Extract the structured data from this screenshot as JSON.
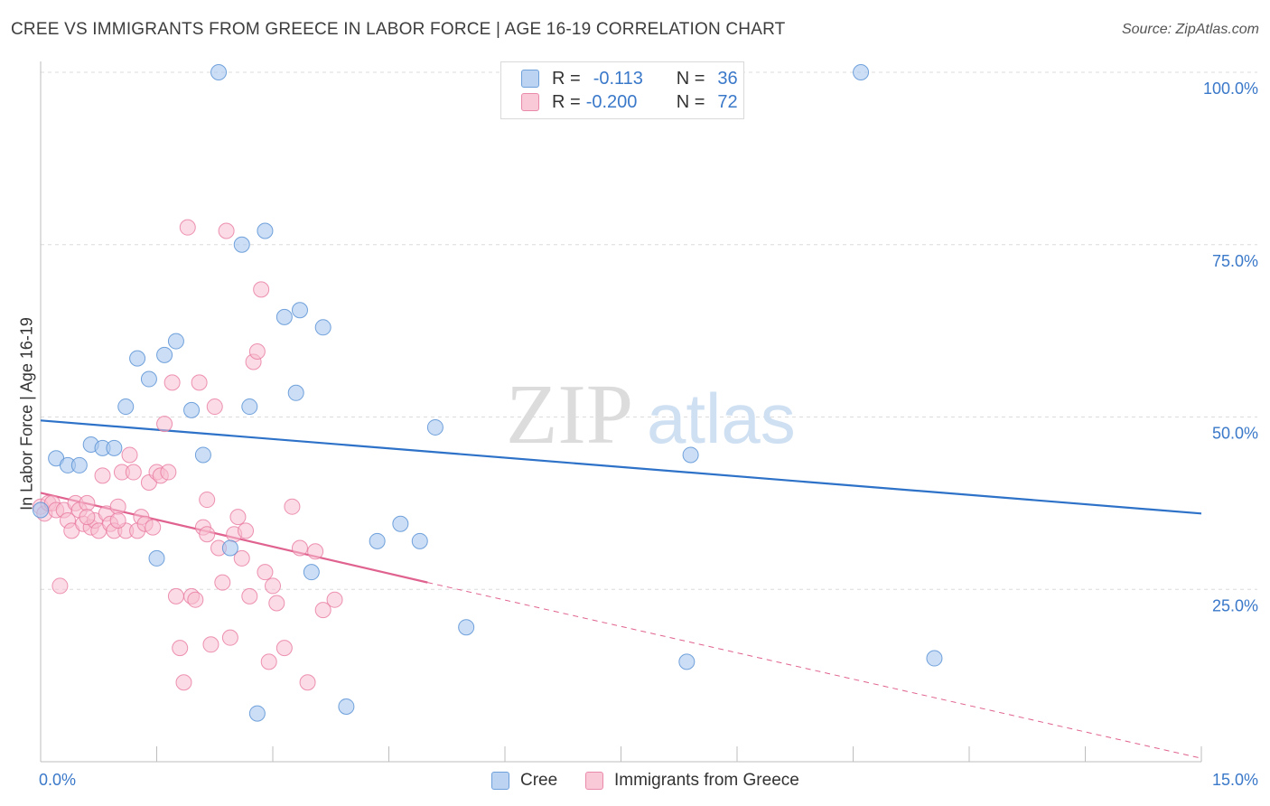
{
  "header": {
    "title": "CREE VS IMMIGRANTS FROM GREECE IN LABOR FORCE | AGE 16-19 CORRELATION CHART",
    "source": "Source: ZipAtlas.com"
  },
  "legend": {
    "cree": {
      "r_label": "R =",
      "r_value": "-0.113",
      "n_label": "N =",
      "n_value": "36"
    },
    "greece": {
      "r_label": "R =",
      "r_value": "-0.200",
      "n_label": "N =",
      "n_value": "72"
    }
  },
  "bottom_legend": {
    "cree": "Cree",
    "greece": "Immigrants from Greece"
  },
  "watermark": {
    "zip": "ZIP",
    "atlas": "atlas"
  },
  "colors": {
    "cree_fill": "#aac8ee",
    "cree_stroke": "#5b93d6",
    "cree_line": "#2d72c8",
    "greece_fill": "#f7bdd0",
    "greece_stroke": "#e9799f",
    "greece_line": "#e0628f",
    "tick_label": "#3a78c9"
  },
  "chart_data": {
    "type": "scatter",
    "title": "CREE VS IMMIGRANTS FROM GREECE IN LABOR FORCE | AGE 16-19 CORRELATION CHART",
    "xlabel": "",
    "ylabel": "In Labor Force | Age 16-19",
    "xlim": [
      0,
      15
    ],
    "ylim": [
      0,
      102
    ],
    "x_tick_labels": [
      "0.0%",
      "15.0%"
    ],
    "y_ticks": [
      25,
      50,
      75,
      100
    ],
    "y_tick_labels": [
      "25.0%",
      "50.0%",
      "75.0%",
      "100.0%"
    ],
    "grid": "horizontal dashed",
    "series": [
      {
        "name": "Cree",
        "points": [
          [
            0.0,
            36.5
          ],
          [
            0.2,
            44.0
          ],
          [
            0.35,
            43.0
          ],
          [
            0.5,
            43.0
          ],
          [
            0.65,
            46.0
          ],
          [
            0.8,
            45.5
          ],
          [
            0.95,
            45.5
          ],
          [
            1.1,
            51.5
          ],
          [
            1.25,
            58.5
          ],
          [
            1.4,
            55.5
          ],
          [
            1.5,
            29.5
          ],
          [
            1.6,
            59.0
          ],
          [
            1.75,
            61.0
          ],
          [
            1.95,
            51.0
          ],
          [
            2.1,
            44.5
          ],
          [
            2.3,
            100.0
          ],
          [
            2.45,
            31.0
          ],
          [
            2.6,
            75.0
          ],
          [
            2.7,
            51.5
          ],
          [
            2.8,
            7.0
          ],
          [
            2.9,
            77.0
          ],
          [
            3.15,
            64.5
          ],
          [
            3.3,
            53.5
          ],
          [
            3.35,
            65.5
          ],
          [
            3.5,
            27.5
          ],
          [
            3.65,
            63.0
          ],
          [
            3.95,
            8.0
          ],
          [
            4.35,
            32.0
          ],
          [
            4.65,
            34.5
          ],
          [
            4.9,
            32.0
          ],
          [
            5.1,
            48.5
          ],
          [
            5.5,
            19.5
          ],
          [
            8.35,
            14.5
          ],
          [
            8.4,
            44.5
          ],
          [
            10.6,
            100.0
          ],
          [
            11.55,
            15.0
          ]
        ],
        "trend": {
          "x": [
            0,
            15
          ],
          "y": [
            49.5,
            36.0
          ]
        }
      },
      {
        "name": "Immigrants from Greece",
        "points": [
          [
            0.0,
            37.0
          ],
          [
            0.05,
            36.0
          ],
          [
            0.1,
            37.5
          ],
          [
            0.15,
            37.5
          ],
          [
            0.2,
            36.5
          ],
          [
            0.25,
            25.5
          ],
          [
            0.3,
            36.5
          ],
          [
            0.35,
            35.0
          ],
          [
            0.4,
            33.5
          ],
          [
            0.45,
            37.5
          ],
          [
            0.5,
            36.5
          ],
          [
            0.55,
            34.5
          ],
          [
            0.6,
            37.5
          ],
          [
            0.65,
            34.0
          ],
          [
            0.7,
            35.0
          ],
          [
            0.75,
            33.5
          ],
          [
            0.8,
            41.5
          ],
          [
            0.85,
            36.0
          ],
          [
            0.9,
            34.5
          ],
          [
            0.95,
            33.5
          ],
          [
            1.0,
            37.0
          ],
          [
            1.05,
            42.0
          ],
          [
            1.1,
            33.5
          ],
          [
            1.15,
            44.5
          ],
          [
            1.2,
            42.0
          ],
          [
            1.25,
            33.5
          ],
          [
            1.3,
            35.5
          ],
          [
            1.35,
            34.5
          ],
          [
            1.4,
            40.5
          ],
          [
            1.45,
            34.0
          ],
          [
            1.5,
            42.0
          ],
          [
            1.55,
            41.5
          ],
          [
            1.6,
            49.0
          ],
          [
            1.65,
            42.0
          ],
          [
            1.7,
            55.0
          ],
          [
            1.75,
            24.0
          ],
          [
            1.8,
            16.5
          ],
          [
            1.85,
            11.5
          ],
          [
            1.9,
            77.5
          ],
          [
            1.95,
            24.0
          ],
          [
            2.0,
            23.5
          ],
          [
            2.05,
            55.0
          ],
          [
            2.1,
            34.0
          ],
          [
            2.15,
            38.0
          ],
          [
            2.2,
            17.0
          ],
          [
            2.25,
            51.5
          ],
          [
            2.3,
            31.0
          ],
          [
            2.35,
            26.0
          ],
          [
            2.4,
            77.0
          ],
          [
            2.45,
            18.0
          ],
          [
            2.5,
            33.0
          ],
          [
            2.55,
            35.5
          ],
          [
            2.6,
            29.5
          ],
          [
            2.65,
            33.5
          ],
          [
            2.7,
            24.0
          ],
          [
            2.75,
            58.0
          ],
          [
            2.8,
            59.5
          ],
          [
            2.85,
            68.5
          ],
          [
            2.9,
            27.5
          ],
          [
            2.95,
            14.5
          ],
          [
            3.0,
            25.5
          ],
          [
            3.05,
            23.0
          ],
          [
            3.15,
            16.5
          ],
          [
            3.25,
            37.0
          ],
          [
            3.35,
            31.0
          ],
          [
            3.45,
            11.5
          ],
          [
            3.55,
            30.5
          ],
          [
            3.65,
            22.0
          ],
          [
            3.8,
            23.5
          ],
          [
            2.15,
            33.0
          ],
          [
            1.0,
            35.0
          ],
          [
            0.6,
            35.5
          ]
        ],
        "trend": {
          "x": [
            0,
            5.0
          ],
          "y": [
            39.0,
            26.0
          ]
        },
        "trend_extension": {
          "x": [
            5.0,
            15
          ],
          "y": [
            26.0,
            0.5
          ]
        }
      }
    ]
  }
}
